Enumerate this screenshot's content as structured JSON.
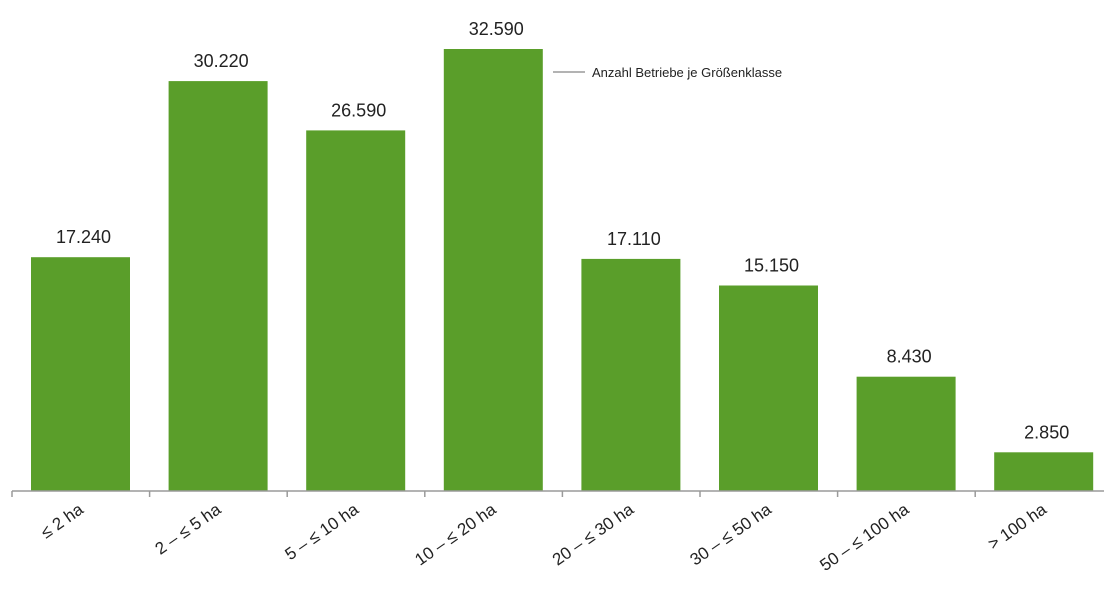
{
  "chart_data": {
    "type": "bar",
    "categories": [
      "≤ 2 ha",
      "2 – ≤ 5 ha",
      "5 – ≤ 10 ha",
      "10 – ≤ 20 ha",
      "20 – ≤ 30 ha",
      "30 – ≤ 50 ha",
      "50 – ≤ 100 ha",
      "> 100 ha"
    ],
    "values": [
      17240,
      30220,
      26590,
      32590,
      17110,
      15150,
      8430,
      2850
    ],
    "value_labels": [
      "17.240",
      "30.220",
      "26.590",
      "32.590",
      "17.110",
      "15.150",
      "8.430",
      "2.850"
    ],
    "series": [
      {
        "name": "Anzahl Betriebe je Größenklasse",
        "values": [
          17240,
          30220,
          26590,
          32590,
          17110,
          15150,
          8430,
          2850
        ]
      }
    ],
    "title": "",
    "xlabel": "",
    "ylabel": "",
    "ylim": [
      0,
      32590
    ],
    "grid": false,
    "legend_position": "top-right",
    "bar_color": "#5a9e2a",
    "axis_color": "#9a9a9a"
  }
}
